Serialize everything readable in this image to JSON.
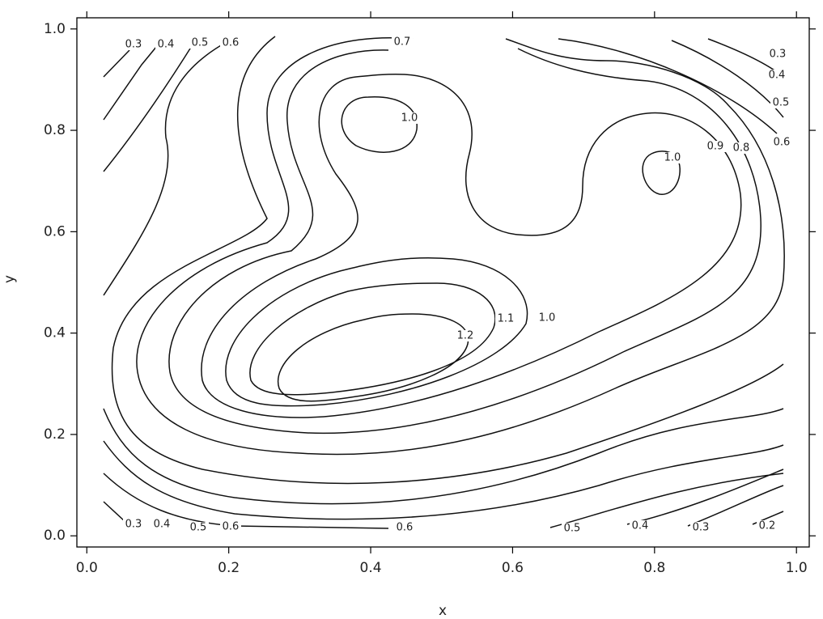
{
  "chart_data": {
    "type": "contour",
    "x_label": "x",
    "y_label": "y",
    "xlim": [
      -0.014,
      1.018
    ],
    "ylim": [
      -0.022,
      1.022
    ],
    "xticks": [
      {
        "value": 0,
        "label": "0.0"
      },
      0.2,
      0.4,
      0.6,
      0.8,
      {
        "value": 1,
        "label": "1.0"
      }
    ],
    "yticks": [
      {
        "value": 0,
        "label": "0.0"
      },
      0.2,
      0.4,
      0.6,
      0.8,
      {
        "value": 1,
        "label": "1.0"
      }
    ],
    "contour_labels": [
      0.3,
      0.4,
      0.5,
      0.6,
      0.7,
      {
        "value": 1,
        "label": "1.0"
      },
      0.3,
      0.4,
      0.5,
      0.6,
      0.8,
      0.9,
      {
        "value": 1,
        "label": "1.0"
      },
      1.1,
      {
        "value": 1,
        "label": "1.0"
      },
      1.2,
      0.3,
      0.4,
      0.5,
      0.6,
      0.6,
      0.5,
      0.4,
      0.3,
      0.2
    ]
  }
}
